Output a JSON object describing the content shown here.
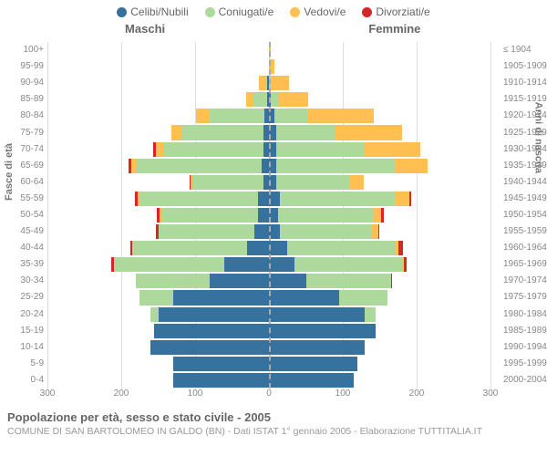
{
  "type": "population-pyramid",
  "legend": [
    {
      "label": "Celibi/Nubili",
      "color": "#37719e"
    },
    {
      "label": "Coniugati/e",
      "color": "#aed99c"
    },
    {
      "label": "Vedovi/e",
      "color": "#ffbf51"
    },
    {
      "label": "Divorziati/e",
      "color": "#d62728"
    }
  ],
  "headers": {
    "male": "Maschi",
    "female": "Femmine"
  },
  "axis_left_label": "Fasce di età",
  "axis_right_label": "Anni di nascita",
  "title": "Popolazione per età, sesso e stato civile - 2005",
  "subtitle": "COMUNE DI SAN BARTOLOMEO IN GALDO (BN) - Dati ISTAT 1° gennaio 2005 - Elaborazione TUTTITALIA.IT",
  "x_max": 300,
  "x_ticks": [
    300,
    200,
    100,
    0,
    100,
    200,
    300
  ],
  "colors": {
    "celibi": "#37719e",
    "coniugati": "#aed99c",
    "vedovi": "#ffbf51",
    "divorziati": "#d62728",
    "grid": "#dddddd",
    "text": "#888888"
  },
  "rows": [
    {
      "age": "100+",
      "birth": "≤ 1904",
      "m": [
        0,
        0,
        0,
        0
      ],
      "f": [
        0,
        0,
        3,
        0
      ]
    },
    {
      "age": "95-99",
      "birth": "1905-1909",
      "m": [
        0,
        0,
        0,
        0
      ],
      "f": [
        0,
        0,
        8,
        0
      ]
    },
    {
      "age": "90-94",
      "birth": "1910-1914",
      "m": [
        2,
        2,
        10,
        0
      ],
      "f": [
        0,
        2,
        25,
        0
      ]
    },
    {
      "age": "85-89",
      "birth": "1915-1919",
      "m": [
        3,
        18,
        10,
        0
      ],
      "f": [
        3,
        10,
        40,
        0
      ]
    },
    {
      "age": "80-84",
      "birth": "1920-1924",
      "m": [
        6,
        75,
        18,
        0
      ],
      "f": [
        7,
        45,
        90,
        0
      ]
    },
    {
      "age": "75-79",
      "birth": "1925-1929",
      "m": [
        8,
        110,
        14,
        0
      ],
      "f": [
        10,
        80,
        90,
        0
      ]
    },
    {
      "age": "70-74",
      "birth": "1930-1934",
      "m": [
        8,
        135,
        10,
        4
      ],
      "f": [
        10,
        120,
        75,
        0
      ]
    },
    {
      "age": "65-69",
      "birth": "1935-1939",
      "m": [
        10,
        170,
        6,
        4
      ],
      "f": [
        10,
        160,
        45,
        0
      ]
    },
    {
      "age": "60-64",
      "birth": "1940-1944",
      "m": [
        8,
        95,
        3,
        2
      ],
      "f": [
        10,
        100,
        18,
        0
      ]
    },
    {
      "age": "55-59",
      "birth": "1945-1949",
      "m": [
        15,
        160,
        3,
        4
      ],
      "f": [
        15,
        155,
        20,
        3
      ]
    },
    {
      "age": "50-54",
      "birth": "1950-1954",
      "m": [
        15,
        130,
        3,
        4
      ],
      "f": [
        12,
        130,
        10,
        3
      ]
    },
    {
      "age": "45-49",
      "birth": "1955-1959",
      "m": [
        20,
        130,
        0,
        3
      ],
      "f": [
        15,
        125,
        8,
        2
      ]
    },
    {
      "age": "40-44",
      "birth": "1960-1964",
      "m": [
        30,
        155,
        0,
        3
      ],
      "f": [
        25,
        145,
        5,
        6
      ]
    },
    {
      "age": "35-39",
      "birth": "1965-1969",
      "m": [
        60,
        150,
        0,
        4
      ],
      "f": [
        35,
        145,
        3,
        3
      ]
    },
    {
      "age": "30-34",
      "birth": "1970-1974",
      "m": [
        80,
        100,
        0,
        0
      ],
      "f": [
        50,
        115,
        0,
        2
      ]
    },
    {
      "age": "25-29",
      "birth": "1975-1979",
      "m": [
        130,
        45,
        0,
        0
      ],
      "f": [
        95,
        65,
        0,
        0
      ]
    },
    {
      "age": "20-24",
      "birth": "1980-1984",
      "m": [
        150,
        10,
        0,
        0
      ],
      "f": [
        130,
        15,
        0,
        0
      ]
    },
    {
      "age": "15-19",
      "birth": "1985-1989",
      "m": [
        155,
        0,
        0,
        0
      ],
      "f": [
        145,
        0,
        0,
        0
      ]
    },
    {
      "age": "10-14",
      "birth": "1990-1994",
      "m": [
        160,
        0,
        0,
        0
      ],
      "f": [
        130,
        0,
        0,
        0
      ]
    },
    {
      "age": "5-9",
      "birth": "1995-1999",
      "m": [
        130,
        0,
        0,
        0
      ],
      "f": [
        120,
        0,
        0,
        0
      ]
    },
    {
      "age": "0-4",
      "birth": "2000-2004",
      "m": [
        130,
        0,
        0,
        0
      ],
      "f": [
        115,
        0,
        0,
        0
      ]
    }
  ]
}
